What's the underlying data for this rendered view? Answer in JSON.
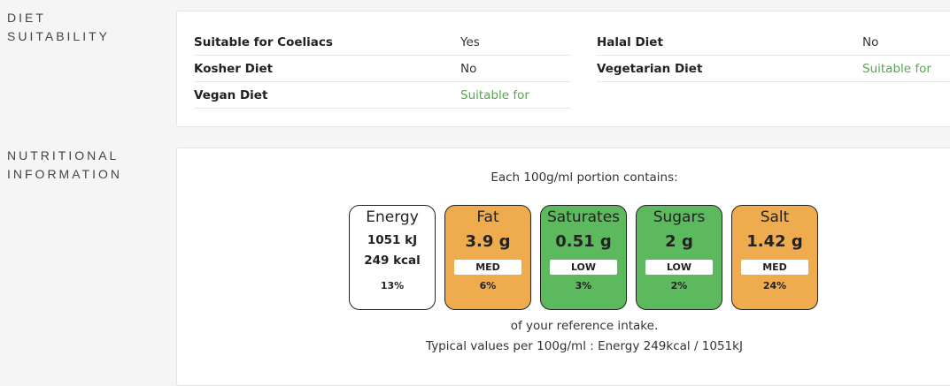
{
  "diet": {
    "heading_line1": "DIET",
    "heading_line2": "SUITABILITY",
    "rows_left": [
      {
        "label": "Suitable for Coeliacs",
        "value": "Yes"
      },
      {
        "label": "Kosher Diet",
        "value": "No"
      },
      {
        "label": "Vegan Diet",
        "value": "Suitable for"
      }
    ],
    "rows_right": [
      {
        "label": "Halal Diet",
        "value": "No"
      },
      {
        "label": "Vegetarian Diet",
        "value": "Suitable for"
      }
    ]
  },
  "nutrition": {
    "heading_line1": "NUTRITIONAL",
    "heading_line2": "INFORMATION",
    "portion_text": "Each 100g/ml portion contains:",
    "energy": {
      "name": "Energy",
      "kj": "1051 kJ",
      "kcal": "249 kcal",
      "percent": "13%"
    },
    "tiles": [
      {
        "name": "Fat",
        "value": "3.9 g",
        "level": "MED",
        "percent": "6%",
        "color": "#eeac4e"
      },
      {
        "name": "Saturates",
        "value": "0.51 g",
        "level": "LOW",
        "percent": "3%",
        "color": "#5cb95e"
      },
      {
        "name": "Sugars",
        "value": "2 g",
        "level": "LOW",
        "percent": "2%",
        "color": "#5cb95e"
      },
      {
        "name": "Salt",
        "value": "1.42 g",
        "level": "MED",
        "percent": "24%",
        "color": "#eeac4e"
      }
    ],
    "reference_text": "of your reference intake.",
    "typical_text": "Typical values per 100g/ml : Energy 249kcal / 1051kJ"
  },
  "colors": {
    "suitable": "#5aa552",
    "amber": "#eeac4e",
    "green": "#5cb95e"
  }
}
